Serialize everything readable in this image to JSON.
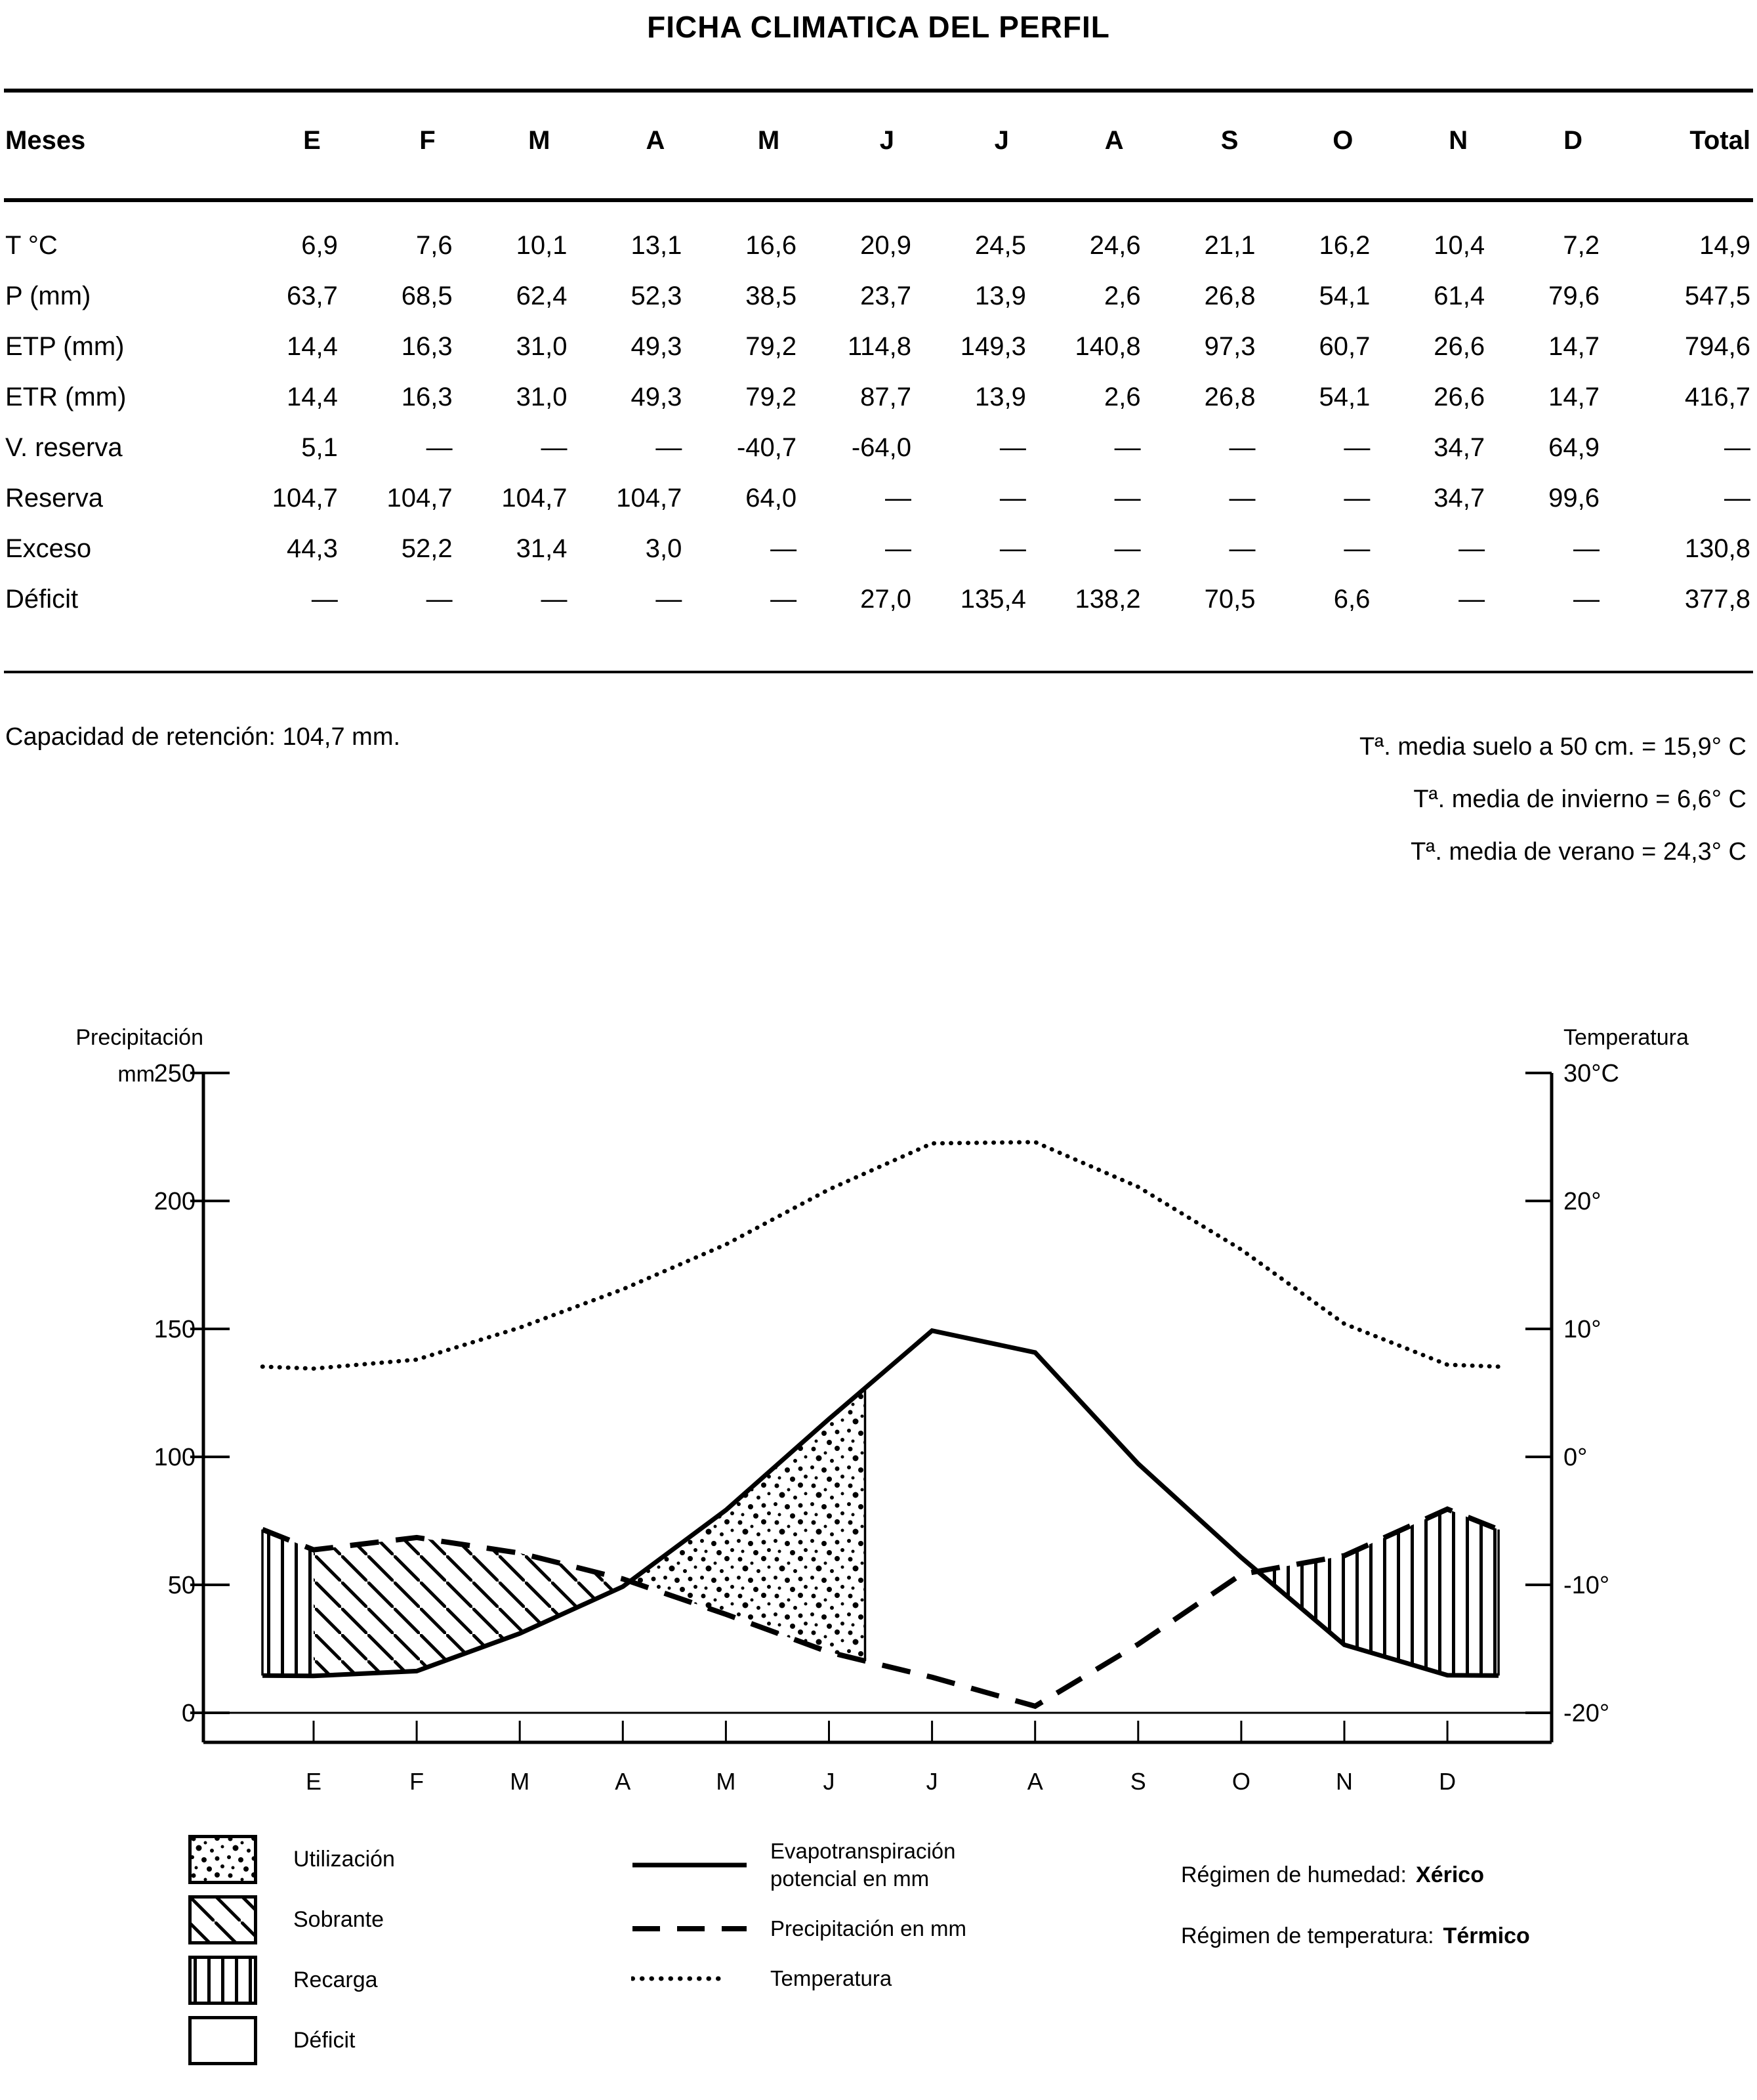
{
  "title": "FICHA CLIMATICA DEL PERFIL",
  "table": {
    "header": {
      "label": "Meses",
      "months": [
        "E",
        "F",
        "M",
        "A",
        "M",
        "J",
        "J",
        "A",
        "S",
        "O",
        "N",
        "D"
      ],
      "total": "Total"
    },
    "rows": [
      {
        "label": "T °C",
        "values": [
          "6,9",
          "7,6",
          "10,1",
          "13,1",
          "16,6",
          "20,9",
          "24,5",
          "24,6",
          "21,1",
          "16,2",
          "10,4",
          "7,2"
        ],
        "total": "14,9"
      },
      {
        "label": "P (mm)",
        "values": [
          "63,7",
          "68,5",
          "62,4",
          "52,3",
          "38,5",
          "23,7",
          "13,9",
          "2,6",
          "26,8",
          "54,1",
          "61,4",
          "79,6"
        ],
        "total": "547,5"
      },
      {
        "label": "ETP (mm)",
        "values": [
          "14,4",
          "16,3",
          "31,0",
          "49,3",
          "79,2",
          "114,8",
          "149,3",
          "140,8",
          "97,3",
          "60,7",
          "26,6",
          "14,7"
        ],
        "total": "794,6"
      },
      {
        "label": "ETR (mm)",
        "values": [
          "14,4",
          "16,3",
          "31,0",
          "49,3",
          "79,2",
          "87,7",
          "13,9",
          "2,6",
          "26,8",
          "54,1",
          "26,6",
          "14,7"
        ],
        "total": "416,7"
      },
      {
        "label": "V. reserva",
        "values": [
          "5,1",
          "—",
          "—",
          "—",
          "-40,7",
          "-64,0",
          "—",
          "—",
          "—",
          "—",
          "34,7",
          "64,9"
        ],
        "total": "—"
      },
      {
        "label": "Reserva",
        "values": [
          "104,7",
          "104,7",
          "104,7",
          "104,7",
          "64,0",
          "—",
          "—",
          "—",
          "—",
          "—",
          "34,7",
          "99,6"
        ],
        "total": "—"
      },
      {
        "label": "Exceso",
        "values": [
          "44,3",
          "52,2",
          "31,4",
          "3,0",
          "—",
          "—",
          "—",
          "—",
          "—",
          "—",
          "—",
          "—"
        ],
        "total": "130,8"
      },
      {
        "label": "Déficit",
        "values": [
          "—",
          "—",
          "—",
          "—",
          "—",
          "27,0",
          "135,4",
          "138,2",
          "70,5",
          "6,6",
          "—",
          "—"
        ],
        "total": "377,8"
      }
    ]
  },
  "notes": {
    "left": "Capacidad de retención: 104,7 mm.",
    "right": [
      "Tª. media suelo a 50 cm. = 15,9° C",
      "Tª. media de invierno = 6,6° C",
      "Tª. media de verano = 24,3° C"
    ]
  },
  "chart_data": {
    "type": "area",
    "months": [
      "E",
      "F",
      "M",
      "A",
      "M",
      "J",
      "J",
      "A",
      "S",
      "O",
      "N",
      "D"
    ],
    "y_left": {
      "title": "Precipitación",
      "unit": "mm",
      "min": 0,
      "max": 250,
      "ticks": [
        250,
        200,
        150,
        100,
        50,
        0
      ]
    },
    "y_right": {
      "title": "Temperatura",
      "unit": "°C",
      "min": -20,
      "max": 30,
      "tick_values": [
        30,
        20,
        10,
        0,
        -10,
        -20
      ],
      "tick_labels": [
        "30°C",
        "20°",
        "10°",
        "0°",
        "-10°",
        "-20°"
      ]
    },
    "series": [
      {
        "name": "Evapotranspiración potencial en mm",
        "style": "solid",
        "axis": "left",
        "values": [
          14.4,
          16.3,
          31.0,
          49.3,
          79.2,
          114.8,
          149.3,
          140.8,
          97.3,
          60.7,
          26.6,
          14.7
        ]
      },
      {
        "name": "Precipitación en mm",
        "style": "dashed",
        "axis": "left",
        "values": [
          63.7,
          68.5,
          62.4,
          52.3,
          38.5,
          23.7,
          13.9,
          2.6,
          26.8,
          54.1,
          61.4,
          79.6
        ]
      },
      {
        "name": "Temperatura",
        "style": "dotted",
        "axis": "right",
        "values": [
          6.9,
          7.6,
          10.1,
          13.1,
          16.6,
          20.9,
          24.5,
          24.6,
          21.1,
          16.2,
          10.4,
          7.2
        ]
      }
    ],
    "areas": [
      {
        "name": "Recarga",
        "pattern": "vlines",
        "note": "left edge to E and O/N crossing to right edge, P above ETP"
      },
      {
        "name": "Sobrante",
        "pattern": "diag",
        "note": "E to P=ETP crossing after A, P above ETP"
      },
      {
        "name": "Utilización",
        "pattern": "stipple",
        "note": "crossing after A to reserve exhaustion after J(junio), ETP above P"
      },
      {
        "name": "Déficit",
        "pattern": "none",
        "note": "white area between ETP and P in summer"
      }
    ]
  },
  "legend": {
    "areas": [
      {
        "label": "Utilización",
        "pattern": "stipple"
      },
      {
        "label": "Sobrante",
        "pattern": "diag"
      },
      {
        "label": "Recarga",
        "pattern": "vlines"
      },
      {
        "label": "Déficit",
        "pattern": "none"
      }
    ],
    "lines": [
      {
        "label": "Evapotranspiración\npotencial en mm",
        "style": "solid"
      },
      {
        "label": "Precipitación en mm",
        "style": "dashed"
      },
      {
        "label": "Temperatura",
        "style": "dotted"
      }
    ],
    "regimen": [
      {
        "label": "Régimen de humedad:",
        "value": "Xérico"
      },
      {
        "label": "Régimen de temperatura:",
        "value": "Térmico"
      }
    ]
  }
}
